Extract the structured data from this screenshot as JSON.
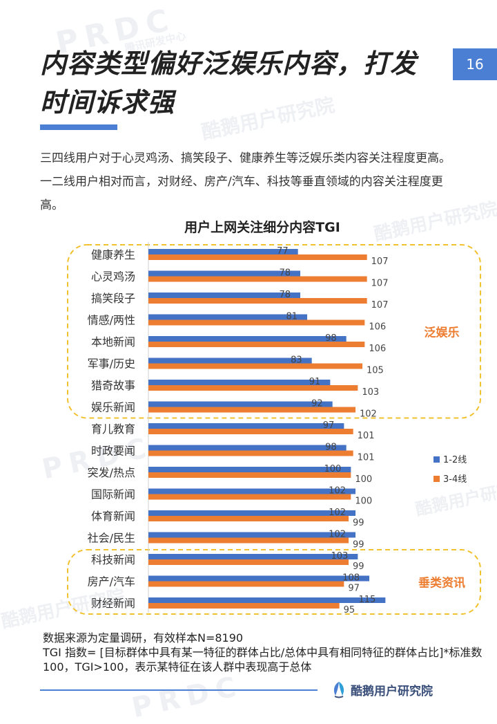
{
  "page": {
    "number": "16",
    "title": "内容类型偏好泛娱乐内容，打发时间诉求强",
    "intro": "三四线用户对于心灵鸡汤、搞笑段子、健康养生等泛娱乐类内容关注程度更高。一二线用户相对而言，对财经、房产/汽车、科技等垂直领域的内容关注程度更高。",
    "footnote_line1": "数据来源为定量调研，有效样本N=8190",
    "footnote_line2": "TGI 指数= [目标群体中具有某一特征的群体占比/总体中具有相同特征的群体占比]*标准数100，TGI>100，表示某特征在该人群中表现高于总体",
    "brand": "酷鹅用户研究院"
  },
  "watermarks": [
    "PRDC",
    "腾讯研发中心",
    "酷鹅用户研究院"
  ],
  "colors": {
    "accent": "#4a7fd4",
    "series1": "#4472c4",
    "series2": "#ed7d31",
    "group_border": "#f2c12e",
    "group_label": "#ed7d31"
  },
  "chart_data": {
    "type": "bar",
    "orientation": "horizontal",
    "title": "用户上网关注细分内容TGI",
    "categories": [
      "健康养生",
      "心灵鸡汤",
      "搞笑段子",
      "情感/两性",
      "本地新闻",
      "军事/历史",
      "猎奇故事",
      "娱乐新闻",
      "育儿教育",
      "时政要闻",
      "突发/热点",
      "国际新闻",
      "体育新闻",
      "社会/民生",
      "科技新闻",
      "房产/汽车",
      "财经新闻"
    ],
    "series": [
      {
        "name": "1-2线",
        "values": [
          77,
          78,
          78,
          81,
          98,
          83,
          91,
          92,
          97,
          98,
          100,
          102,
          102,
          102,
          103,
          108,
          115
        ]
      },
      {
        "name": "3-4线",
        "values": [
          107,
          107,
          107,
          106,
          106,
          105,
          103,
          102,
          101,
          101,
          100,
          100,
          99,
          99,
          99,
          97,
          95
        ]
      }
    ],
    "xlim": [
      0,
      120
    ],
    "legend_position": "right",
    "groups": [
      {
        "label": "泛娱乐",
        "first": 0,
        "last": 7
      },
      {
        "label": "垂类资讯",
        "first": 14,
        "last": 16
      }
    ]
  }
}
